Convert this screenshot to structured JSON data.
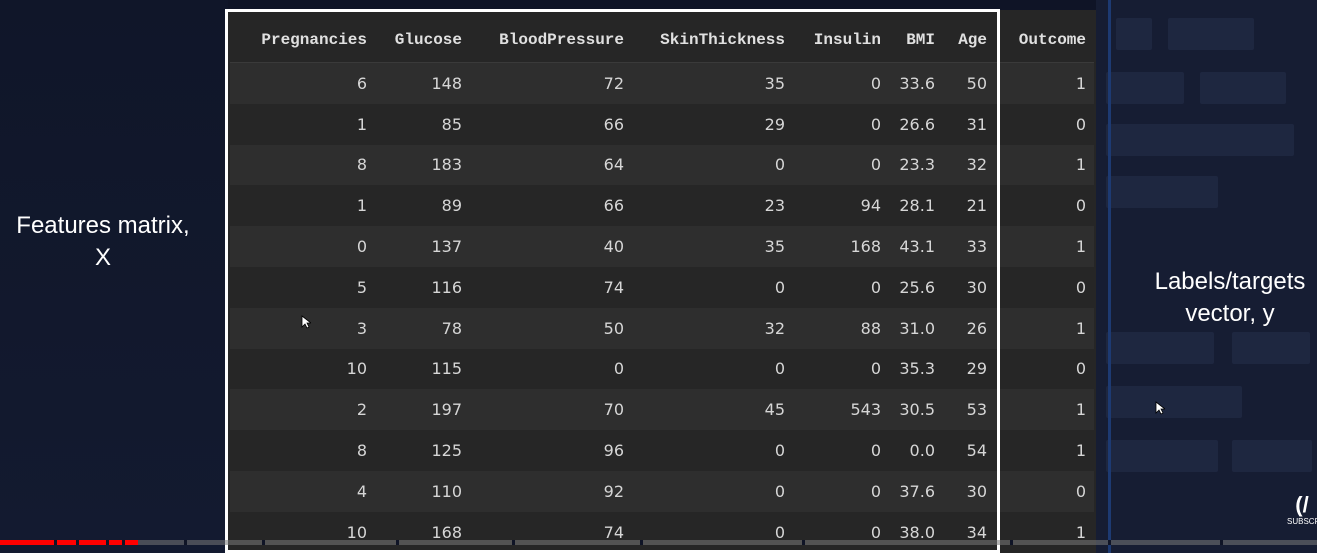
{
  "left_label": {
    "line1": "Features matrix,",
    "line2": "X"
  },
  "right_label": {
    "line1": "Labels/targets",
    "line2": "vector, y"
  },
  "table": {
    "columns": [
      "Pregnancies",
      "Glucose",
      "BloodPressure",
      "SkinThickness",
      "Insulin",
      "BMI",
      "Age",
      "Outcome"
    ],
    "rows": [
      [
        "6",
        "148",
        "72",
        "35",
        "0",
        "33.6",
        "50",
        "1"
      ],
      [
        "1",
        "85",
        "66",
        "29",
        "0",
        "26.6",
        "31",
        "0"
      ],
      [
        "8",
        "183",
        "64",
        "0",
        "0",
        "23.3",
        "32",
        "1"
      ],
      [
        "1",
        "89",
        "66",
        "23",
        "94",
        "28.1",
        "21",
        "0"
      ],
      [
        "0",
        "137",
        "40",
        "35",
        "168",
        "43.1",
        "33",
        "1"
      ],
      [
        "5",
        "116",
        "74",
        "0",
        "0",
        "25.6",
        "30",
        "0"
      ],
      [
        "3",
        "78",
        "50",
        "32",
        "88",
        "31.0",
        "26",
        "1"
      ],
      [
        "10",
        "115",
        "0",
        "0",
        "0",
        "35.3",
        "29",
        "0"
      ],
      [
        "2",
        "197",
        "70",
        "45",
        "543",
        "30.5",
        "53",
        "1"
      ],
      [
        "8",
        "125",
        "96",
        "0",
        "0",
        "0.0",
        "54",
        "1"
      ],
      [
        "4",
        "110",
        "92",
        "0",
        "0",
        "37.6",
        "30",
        "0"
      ],
      [
        "10",
        "168",
        "74",
        "0",
        "0",
        "38.0",
        "34",
        "1"
      ]
    ]
  },
  "video": {
    "progress_fraction": 0.105
  },
  "logo": {
    "glyph": "(/",
    "text": "SUBSCR"
  },
  "colors": {
    "progress": "#ff0000",
    "highlight_box": "#ffffff"
  }
}
